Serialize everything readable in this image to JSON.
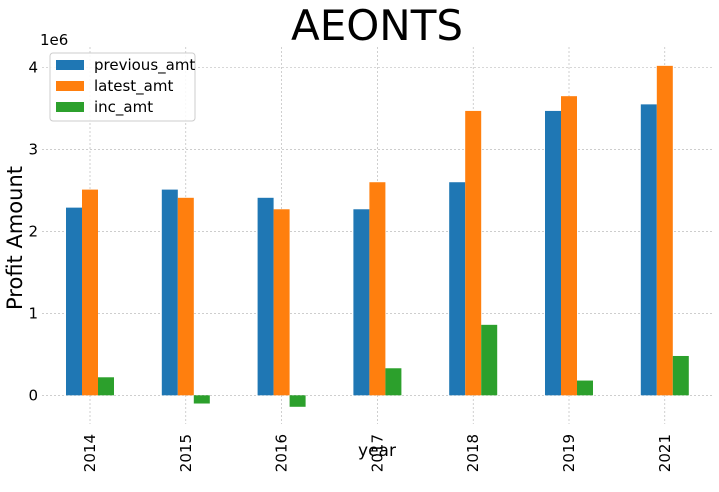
{
  "chart_data": {
    "type": "bar",
    "title": "AEONTS",
    "xlabel": "year",
    "ylabel": "Profit Amount",
    "y_scale_label": "1e6",
    "categories": [
      "2014",
      "2015",
      "2016",
      "2017",
      "2018",
      "2019",
      "2021"
    ],
    "series": [
      {
        "name": "previous_amt",
        "color": "#1f77b4",
        "values": [
          2290000,
          2510000,
          2410000,
          2270000,
          2600000,
          3470000,
          3550000
        ]
      },
      {
        "name": "latest_amt",
        "color": "#ff7f0e",
        "values": [
          2510000,
          2410000,
          2270000,
          2600000,
          3470000,
          3650000,
          4020000
        ]
      },
      {
        "name": "inc_amt",
        "color": "#2ca02c",
        "values": [
          220000,
          -100000,
          -140000,
          330000,
          860000,
          180000,
          480000
        ]
      }
    ],
    "yticks": [
      0,
      1,
      2,
      3,
      4
    ],
    "ylim": [
      -350000,
      4250000
    ],
    "grid": true,
    "legend_position": "top-left"
  }
}
